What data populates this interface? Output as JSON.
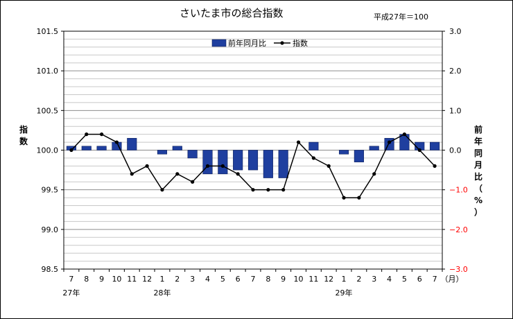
{
  "chart_data": {
    "type": "bar+line",
    "title": "さいたま市の総合指数",
    "base_note": "平成27年＝100",
    "categories": [
      "7",
      "8",
      "9",
      "10",
      "11",
      "12",
      "1",
      "2",
      "3",
      "4",
      "5",
      "6",
      "7",
      "8",
      "9",
      "10",
      "11",
      "12",
      "1",
      "2",
      "3",
      "4",
      "5",
      "6",
      "7"
    ],
    "year_labels": [
      {
        "label": "27年",
        "category_index": 0
      },
      {
        "label": "28年",
        "category_index": 6
      },
      {
        "label": "29年",
        "category_index": 18
      }
    ],
    "month_unit": "（月）",
    "left_axis": {
      "label": "指数",
      "range": [
        98.5,
        101.5
      ],
      "ticks": [
        "98.5",
        "99.0",
        "99.5",
        "100.0",
        "100.5",
        "101.0",
        "101.5"
      ]
    },
    "right_axis": {
      "label": "前年同月比（%）",
      "range": [
        -3.0,
        3.0
      ],
      "ticks": [
        "−3.0",
        "−2.0",
        "−1.0",
        "0.0",
        "1.0",
        "2.0",
        "3.0"
      ],
      "negative_color": "#ff0000"
    },
    "series": [
      {
        "name": "前年同月比",
        "kind": "bar",
        "axis": "right",
        "color": "#1f3f9f",
        "values": [
          0.1,
          0.1,
          0.1,
          0.2,
          0.3,
          0.0,
          -0.1,
          0.1,
          -0.2,
          -0.6,
          -0.6,
          -0.5,
          -0.5,
          -0.7,
          -0.7,
          0.0,
          0.2,
          0.0,
          -0.1,
          -0.3,
          0.1,
          0.3,
          0.4,
          0.2,
          0.2
        ]
      },
      {
        "name": "指数",
        "kind": "line",
        "axis": "left",
        "color": "#000000",
        "values": [
          100.0,
          100.2,
          100.2,
          100.1,
          99.7,
          99.8,
          99.5,
          99.7,
          99.6,
          99.8,
          99.8,
          99.7,
          99.5,
          99.5,
          99.5,
          100.1,
          99.9,
          99.8,
          99.4,
          99.4,
          99.7,
          100.1,
          100.2,
          100.0,
          99.8
        ]
      }
    ],
    "legend_position": "top-center",
    "grid": true
  }
}
